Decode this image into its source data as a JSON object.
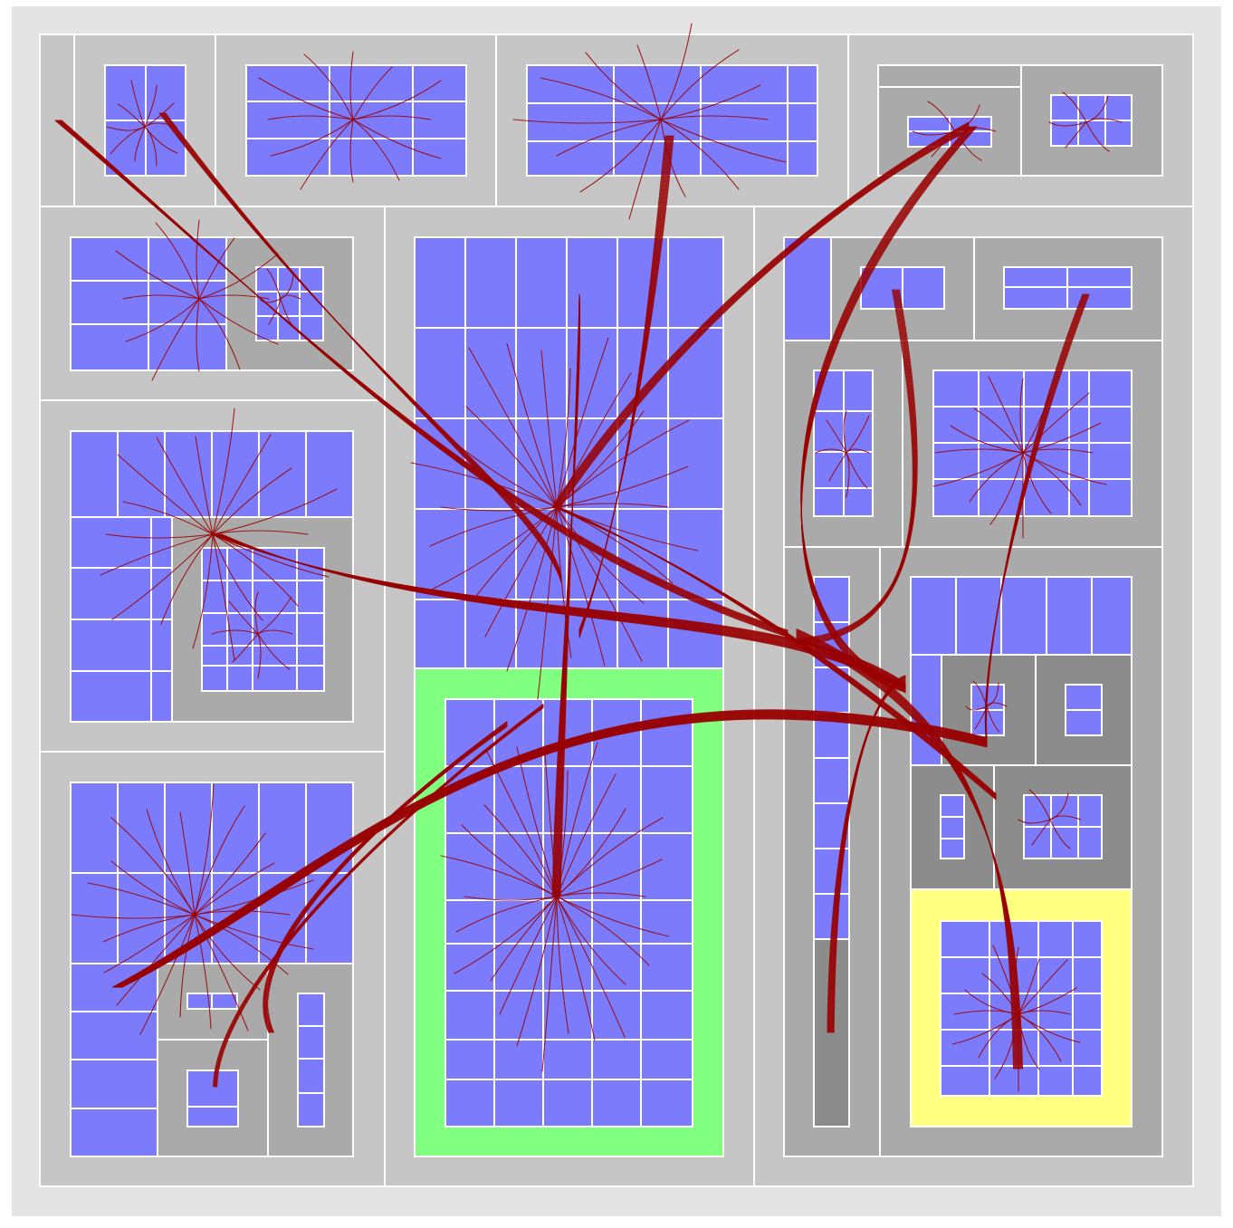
{
  "colors": {
    "background": "#e4e4e4",
    "level1": "#c6c6c6",
    "level2": "#aaaaaa",
    "level3": "#8c8c8c",
    "leaf": "#7b7bfb",
    "highlight_green": "#80ff80",
    "highlight_yellow": "#ffff80",
    "edge": "#990000",
    "border": "#ffffff"
  },
  "visible_text": []
}
